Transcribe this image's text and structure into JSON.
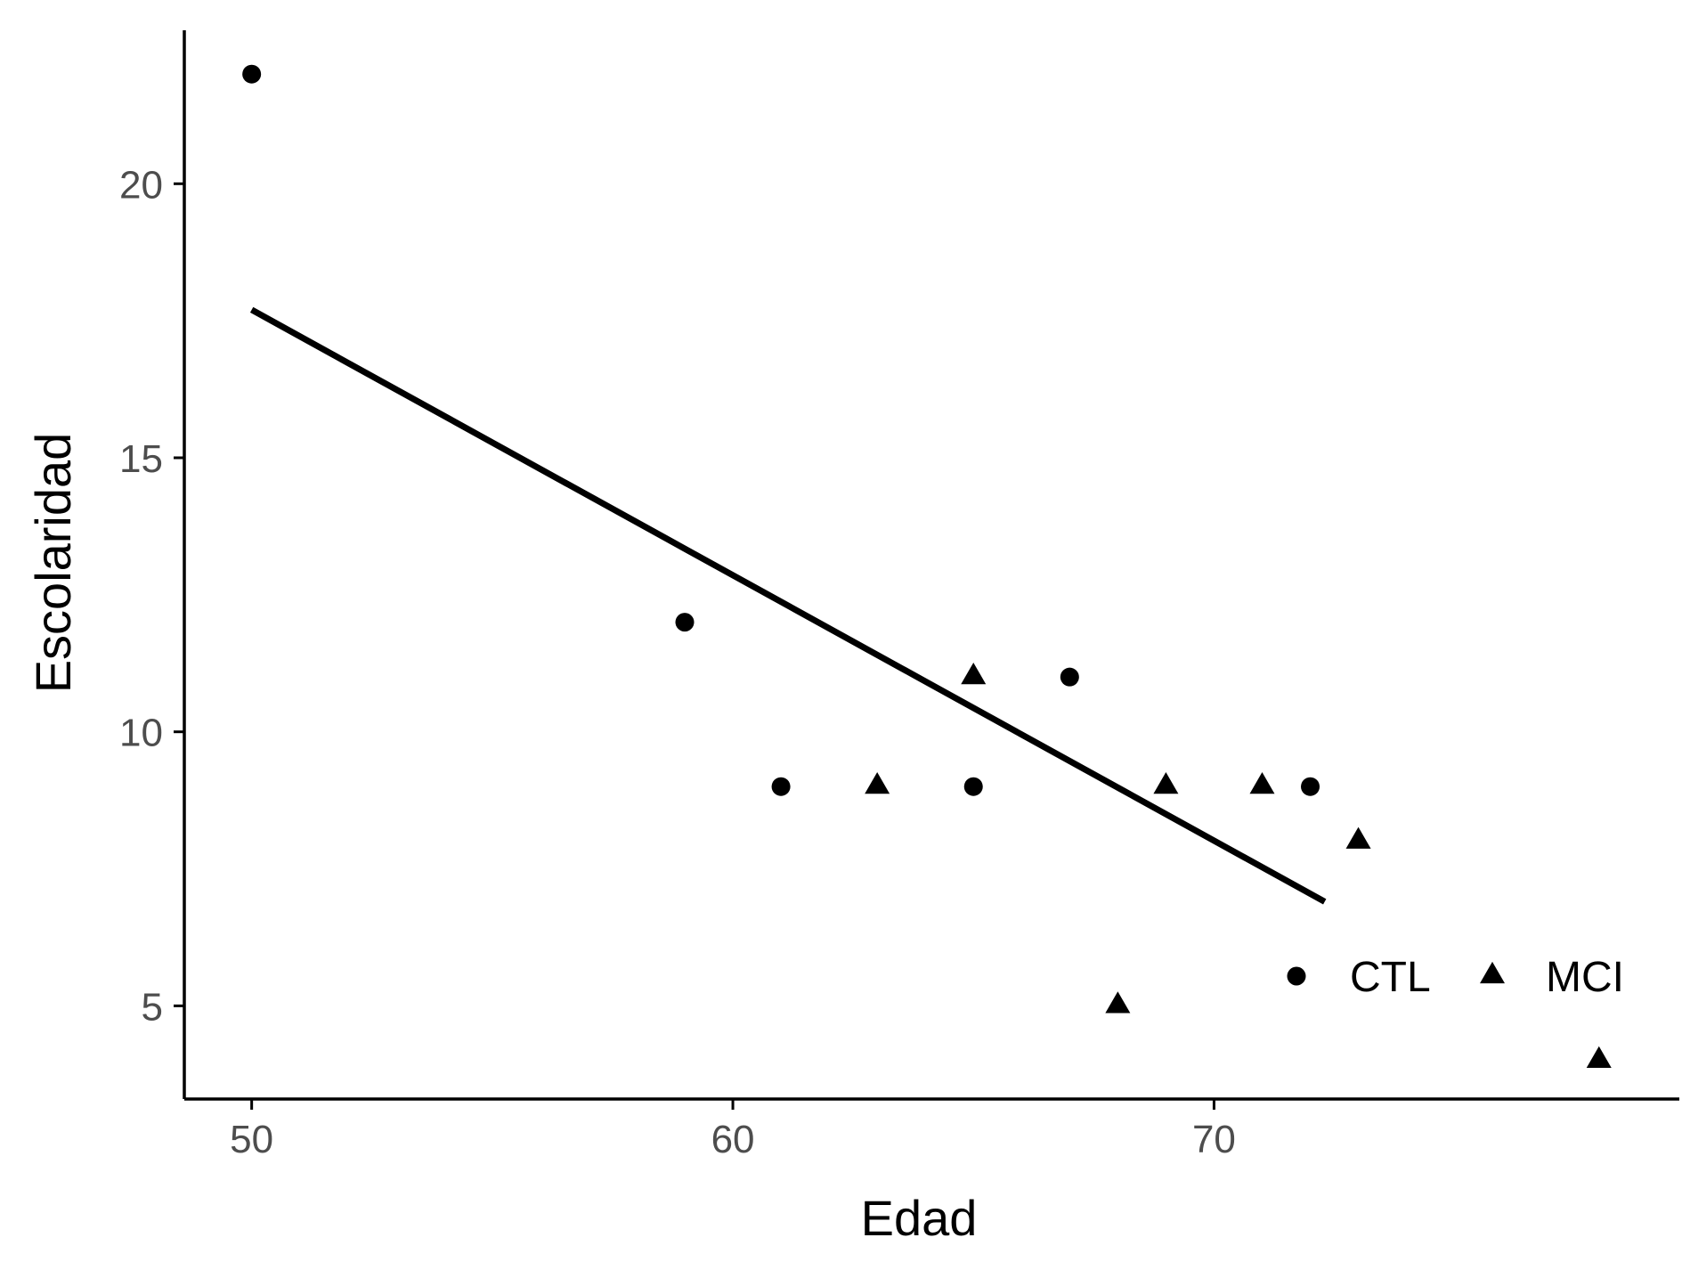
{
  "chart_data": {
    "type": "scatter",
    "title": "",
    "xlabel": "Edad",
    "ylabel": "Escolaridad",
    "xlim": [
      48.6,
      79.3
    ],
    "ylim": [
      3.3,
      22.8
    ],
    "x_ticks": [
      50,
      60,
      70
    ],
    "y_ticks": [
      5,
      10,
      15,
      20
    ],
    "x_tick_labels": [
      "50",
      "60",
      "70"
    ],
    "y_tick_labels": [
      "5",
      "10",
      "15",
      "20"
    ],
    "grid": false,
    "legend_position": "bottom-right, inside",
    "series": [
      {
        "name": "CTL",
        "marker": "circle",
        "points": [
          {
            "x": 50,
            "y": 22
          },
          {
            "x": 59,
            "y": 12
          },
          {
            "x": 61,
            "y": 9
          },
          {
            "x": 65,
            "y": 9
          },
          {
            "x": 67,
            "y": 11
          },
          {
            "x": 72,
            "y": 9
          }
        ]
      },
      {
        "name": "MCI",
        "marker": "triangle",
        "points": [
          {
            "x": 63,
            "y": 9
          },
          {
            "x": 65,
            "y": 11
          },
          {
            "x": 68,
            "y": 5
          },
          {
            "x": 69,
            "y": 9
          },
          {
            "x": 71,
            "y": 9
          },
          {
            "x": 73,
            "y": 8
          },
          {
            "x": 78,
            "y": 4
          }
        ]
      }
    ],
    "fit_line": {
      "type": "linear",
      "x_start": 50,
      "y_start": 17.7,
      "x_end": 72.3,
      "y_end": 6.9
    }
  },
  "colors": {
    "ink": "#000000",
    "tick_text": "#4d4d4d",
    "background": "#ffffff"
  }
}
